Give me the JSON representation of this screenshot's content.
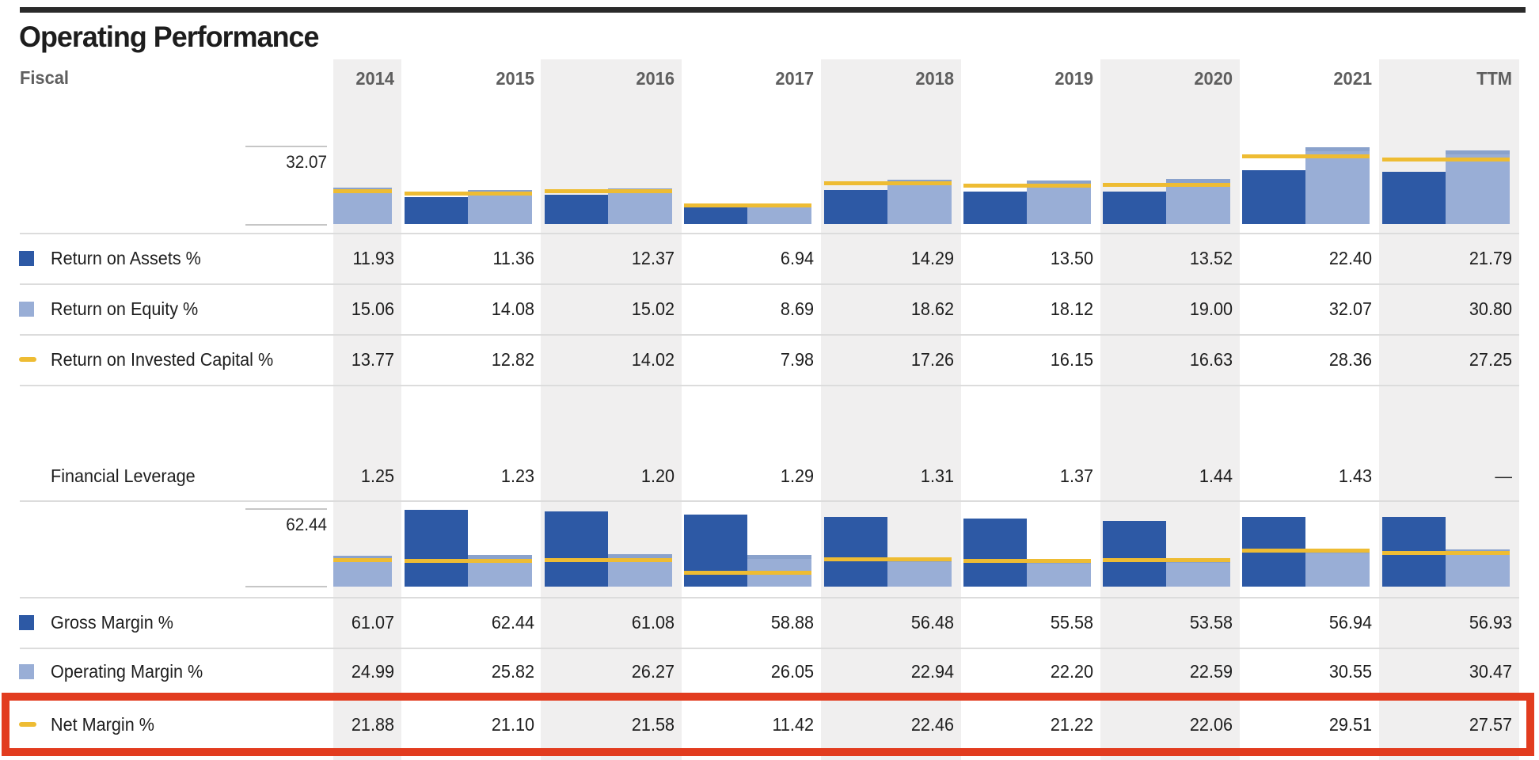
{
  "title": "Operating Performance",
  "fiscal_label": "Fiscal",
  "years": [
    "2014",
    "2015",
    "2016",
    "2017",
    "2018",
    "2019",
    "2020",
    "2021",
    "TTM"
  ],
  "section1": {
    "axis_max_label": "32.07",
    "rows": [
      {
        "label": "Return on Assets %",
        "marker": "dark-square",
        "values": [
          "11.93",
          "11.36",
          "12.37",
          "6.94",
          "14.29",
          "13.50",
          "13.52",
          "22.40",
          "21.79"
        ]
      },
      {
        "label": "Return on Equity %",
        "marker": "light-square",
        "values": [
          "15.06",
          "14.08",
          "15.02",
          "8.69",
          "18.62",
          "18.12",
          "19.00",
          "32.07",
          "30.80"
        ]
      },
      {
        "label": "Return on Invested Capital %",
        "marker": "yellow-dash",
        "values": [
          "13.77",
          "12.82",
          "14.02",
          "7.98",
          "17.26",
          "16.15",
          "16.63",
          "28.36",
          "27.25"
        ]
      }
    ]
  },
  "leverage_row": {
    "label": "Financial Leverage",
    "values": [
      "1.25",
      "1.23",
      "1.20",
      "1.29",
      "1.31",
      "1.37",
      "1.44",
      "1.43",
      "—"
    ]
  },
  "section2": {
    "axis_max_label": "62.44",
    "rows": [
      {
        "label": "Gross Margin %",
        "marker": "dark-square",
        "values": [
          "61.07",
          "62.44",
          "61.08",
          "58.88",
          "56.48",
          "55.58",
          "53.58",
          "56.94",
          "56.93"
        ]
      },
      {
        "label": "Operating Margin %",
        "marker": "light-square",
        "values": [
          "24.99",
          "25.82",
          "26.27",
          "26.05",
          "22.94",
          "22.20",
          "22.59",
          "30.55",
          "30.47"
        ]
      },
      {
        "label": "Net Margin %",
        "marker": "yellow-dash",
        "values": [
          "21.88",
          "21.10",
          "21.58",
          "11.42",
          "22.46",
          "21.22",
          "22.06",
          "29.51",
          "27.57"
        ]
      }
    ]
  },
  "highlight": {
    "type": "red-annotation-box",
    "target_row": "Net Margin %"
  },
  "colors": {
    "dark_blue_bar": "#2d59a5",
    "light_blue_bar": "#99aed6",
    "light_blue_bar_cap": "#8aa2cc",
    "yellow_line": "#eebc33",
    "column_band": "#f0efef",
    "header_text": "#5e5e5e",
    "body_text": "#1e1e1e",
    "row_border": "#dcdcdc",
    "highlight_red": "#e23c1f"
  },
  "chart_data": [
    {
      "type": "bar",
      "subtype": "grouped bars with line-overlay markers per category",
      "title": "Returns chart (top)",
      "categories": [
        "2014",
        "2015",
        "2016",
        "2017",
        "2018",
        "2019",
        "2020",
        "2021",
        "TTM"
      ],
      "series": [
        {
          "name": "Return on Assets %",
          "style": "dark-blue-bar",
          "values": [
            11.93,
            11.36,
            12.37,
            6.94,
            14.29,
            13.5,
            13.52,
            22.4,
            21.79
          ]
        },
        {
          "name": "Return on Equity %",
          "style": "light-blue-bar",
          "values": [
            15.06,
            14.08,
            15.02,
            8.69,
            18.62,
            18.12,
            19.0,
            32.07,
            30.8
          ]
        },
        {
          "name": "Return on Invested Capital %",
          "style": "yellow-line",
          "values": [
            13.77,
            12.82,
            14.02,
            7.98,
            17.26,
            16.15,
            16.63,
            28.36,
            27.25
          ]
        }
      ],
      "ylim": [
        0,
        32.07
      ],
      "axis_tick_label": "32.07",
      "grid": false,
      "note": "2014 dark bar is clipped off the left edge of the plot area; only the light bar and yellow line are visible"
    },
    {
      "type": "bar",
      "subtype": "grouped bars with line-overlay markers per category",
      "title": "Margins chart (bottom)",
      "categories": [
        "2014",
        "2015",
        "2016",
        "2017",
        "2018",
        "2019",
        "2020",
        "2021",
        "TTM"
      ],
      "series": [
        {
          "name": "Gross Margin %",
          "style": "dark-blue-bar",
          "values": [
            61.07,
            62.44,
            61.08,
            58.88,
            56.48,
            55.58,
            53.58,
            56.94,
            56.93
          ]
        },
        {
          "name": "Operating Margin %",
          "style": "light-blue-bar",
          "values": [
            24.99,
            25.82,
            26.27,
            26.05,
            22.94,
            22.2,
            22.59,
            30.55,
            30.47
          ]
        },
        {
          "name": "Net Margin %",
          "style": "yellow-line",
          "values": [
            21.88,
            21.1,
            21.58,
            11.42,
            22.46,
            21.22,
            22.06,
            29.51,
            27.57
          ]
        }
      ],
      "ylim": [
        0,
        62.44
      ],
      "axis_tick_label": "62.44",
      "grid": false,
      "note": "2014 dark bar is clipped off the left edge of the plot area; only the light bar and yellow line are visible"
    }
  ]
}
